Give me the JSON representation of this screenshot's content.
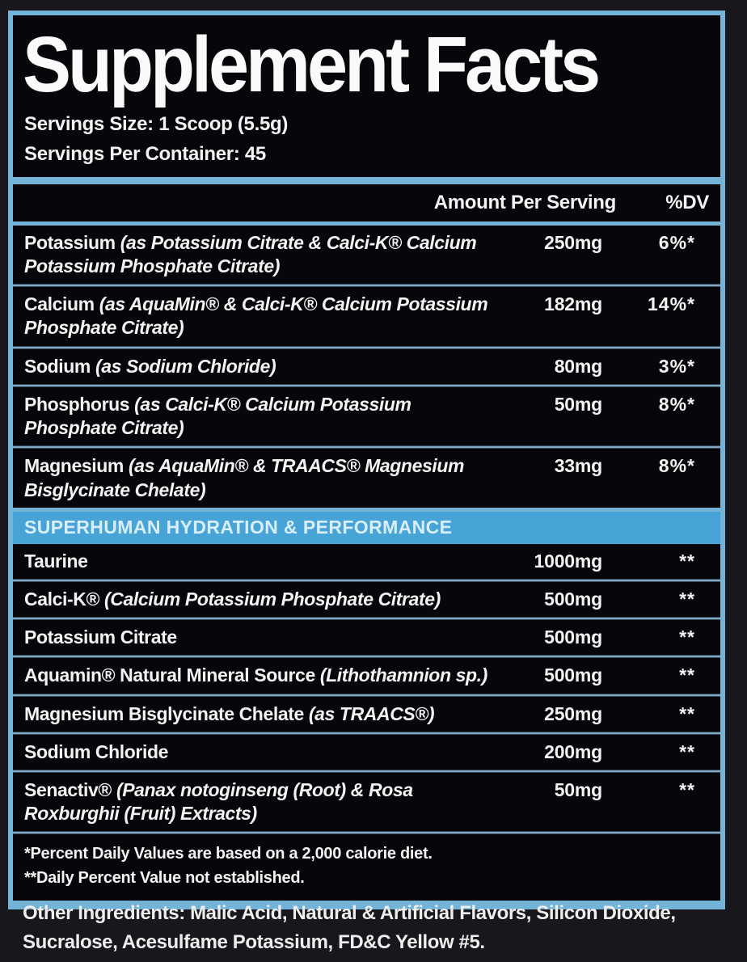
{
  "colors": {
    "background": "#17171c",
    "panel_background": "#07070b",
    "accent_blue_border": "#74b3d8",
    "section_bar_background": "#48a3d7",
    "section_bar_text": "#d8effb",
    "text": "#f3f3f3"
  },
  "panel": {
    "title": "Supplement Facts",
    "serving_size": "Servings Size: 1 Scoop (5.5g)",
    "servings_per_container": "Servings Per Container: 45"
  },
  "table": {
    "header": {
      "amount": "Amount Per Serving",
      "dv": "%DV"
    },
    "section_header": "SUPERHUMAN HYDRATION & PERFORMANCE",
    "rows": [
      {
        "name": "Potassium",
        "detail": "(as Potassium Citrate & Calci-K® Calcium Potassium Phosphate Citrate)",
        "amount": "250mg",
        "dv": "6%*"
      },
      {
        "name": "Calcium",
        "detail": "(as AquaMin® & Calci-K® Calcium Potassium Phosphate Citrate)",
        "amount": "182mg",
        "dv": "14%*"
      },
      {
        "name": "Sodium",
        "detail": "(as Sodium Chloride)",
        "amount": "80mg",
        "dv": "3%*"
      },
      {
        "name": "Phosphorus",
        "detail": "(as Calci-K® Calcium Potassium Phosphate Citrate)",
        "amount": "50mg",
        "dv": "8%*"
      },
      {
        "name": "Magnesium",
        "detail": "(as AquaMin® & TRAACS® Magnesium Bisglycinate Chelate)",
        "amount": "33mg",
        "dv": "8%*"
      },
      {
        "name": "Taurine",
        "detail": "",
        "amount": "1000mg",
        "dv": "**"
      },
      {
        "name": "Calci-K®",
        "detail": "(Calcium Potassium Phosphate Citrate)",
        "amount": "500mg",
        "dv": "**"
      },
      {
        "name": "Potassium Citrate",
        "detail": "",
        "amount": "500mg",
        "dv": "**"
      },
      {
        "name": "Aquamin® Natural Mineral Source",
        "detail": "(Lithothamnion sp.)",
        "amount": "500mg",
        "dv": "**"
      },
      {
        "name": "Magnesium Bisglycinate Chelate",
        "detail": "(as TRAACS®)",
        "amount": "250mg",
        "dv": "**"
      },
      {
        "name": "Sodium Chloride",
        "detail": "",
        "amount": "200mg",
        "dv": "**"
      },
      {
        "name": "Senactiv®",
        "detail": "(Panax notoginseng (Root) & Rosa Roxburghii (Fruit) Extracts)",
        "amount": "50mg",
        "dv": "**"
      }
    ]
  },
  "footnotes": {
    "daily_value": "*Percent Daily Values are based on a 2,000 calorie diet.",
    "not_established": "**Daily Percent Value not established."
  },
  "other_ingredients": "Other Ingredients: Malic Acid, Natural & Artificial Flavors, Silicon Dioxide, Sucralose, Acesulfame Potassium, FD&C Yellow #5."
}
